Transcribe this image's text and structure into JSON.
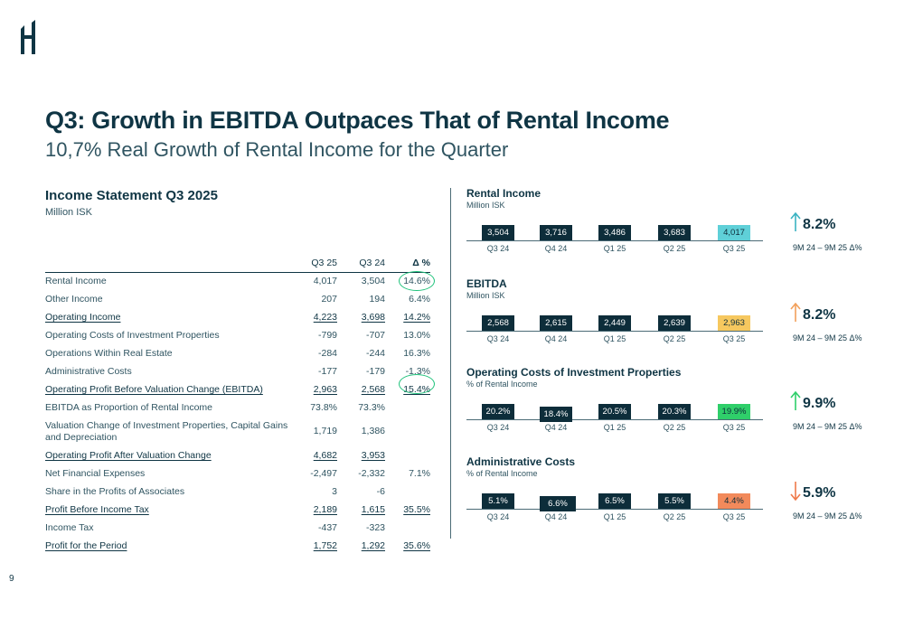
{
  "page": {
    "title": "Q3: Growth in EBITDA Outpaces That of Rental Income",
    "subtitle": "10,7% Real Growth of Rental Income for the Quarter",
    "page_number": "9"
  },
  "statement": {
    "title": "Income Statement Q3 2025",
    "unit": "Million ISK",
    "headers": [
      "Q3 25",
      "Q3 24",
      "Δ %"
    ],
    "rows": [
      {
        "label": "Rental Income",
        "q325": "4,017",
        "q324": "3,504",
        "delta": "14.6%",
        "style": "normal"
      },
      {
        "label": "Other Income",
        "q325": "207",
        "q324": "194",
        "delta": "6.4%",
        "style": "normal"
      },
      {
        "label": "Operating Income",
        "q325": "4,223",
        "q324": "3,698",
        "delta": "14.2%",
        "style": "bold"
      },
      {
        "label": "Operating Costs of Investment Properties",
        "q325": "-799",
        "q324": "-707",
        "delta": "13.0%",
        "style": "normal"
      },
      {
        "label": "Operations Within Real Estate",
        "q325": "-284",
        "q324": "-244",
        "delta": "16.3%",
        "style": "normal"
      },
      {
        "label": "Administrative Costs",
        "q325": "-177",
        "q324": "-179",
        "delta": "-1.3%",
        "style": "normal"
      },
      {
        "label": "Operating Profit Before Valuation Change (EBITDA)",
        "q325": "2,963",
        "q324": "2,568",
        "delta": "15.4%",
        "style": "bold"
      },
      {
        "label": "EBITDA as Proportion of Rental Income",
        "q325": "73.8%",
        "q324": "73.3%",
        "delta": "",
        "style": "normal"
      },
      {
        "label": "Valuation Change of Investment Properties, Capital Gains and Depreciation",
        "q325": "1,719",
        "q324": "1,386",
        "delta": "",
        "style": "tall"
      },
      {
        "label": "Operating Profit After Valuation Change",
        "q325": "4,682",
        "q324": "3,953",
        "delta": "",
        "style": "bold"
      },
      {
        "label": "Net Financial Expenses",
        "q325": "-2,497",
        "q324": "-2,332",
        "delta": "7.1%",
        "style": "normal"
      },
      {
        "label": "Share in the Profits of Associates",
        "q325": "3",
        "q324": "-6",
        "delta": "",
        "style": "normal"
      },
      {
        "label": "Profit Before Income Tax",
        "q325": "2,189",
        "q324": "1,615",
        "delta": "35.5%",
        "style": "bold"
      },
      {
        "label": "Income Tax",
        "q325": "-437",
        "q324": "-323",
        "delta": "",
        "style": "normal"
      },
      {
        "label": "Profit for the Period",
        "q325": "1,752",
        "q324": "1,292",
        "delta": "35.6%",
        "style": "bold"
      }
    ]
  },
  "colors": {
    "navy": "#0d2d3a",
    "highlight_teal": "#5fd0d8",
    "highlight_yellow": "#f6c85f",
    "highlight_green": "#2fcf6a",
    "highlight_orange": "#f28a5b",
    "arrow_teal": "#3bb3c2",
    "arrow_orange_up": "#f2a05b",
    "arrow_green": "#2fcf6a",
    "arrow_orange_down": "#ef7a4a",
    "circle_green": "#1ec27a"
  },
  "chart_data": [
    {
      "type": "table",
      "title": "Rental Income",
      "unit": "Million ISK",
      "categories": [
        "Q3 24",
        "Q4 24",
        "Q1 25",
        "Q2 25",
        "Q3 25"
      ],
      "values": [
        "3,504",
        "3,716",
        "3,486",
        "3,683",
        "4,017"
      ],
      "highlight_color": "#5fd0d8",
      "summary_value": "8.2%",
      "summary_label": "9M 24 – 9M 25 Δ%",
      "direction": "up",
      "arrow_color": "#3bb3c2"
    },
    {
      "type": "table",
      "title": "EBITDA",
      "unit": "Million ISK",
      "categories": [
        "Q3 24",
        "Q4 24",
        "Q1 25",
        "Q2 25",
        "Q3 25"
      ],
      "values": [
        "2,568",
        "2,615",
        "2,449",
        "2,639",
        "2,963"
      ],
      "highlight_color": "#f6c85f",
      "summary_value": "8.2%",
      "summary_label": "9M 24 – 9M 25 Δ%",
      "direction": "up",
      "arrow_color": "#f2a05b"
    },
    {
      "type": "table",
      "title": "Operating Costs of Investment Properties",
      "unit": "% of Rental Income",
      "categories": [
        "Q3 24",
        "Q4 24",
        "Q1 25",
        "Q2 25",
        "Q3 25"
      ],
      "values": [
        "20.2%",
        "18.4%",
        "20.5%",
        "20.3%",
        "19.9%"
      ],
      "highlight_color": "#2fcf6a",
      "summary_value": "9.9%",
      "summary_label": "9M 24 – 9M 25 Δ%",
      "direction": "up",
      "arrow_color": "#2fcf6a"
    },
    {
      "type": "table",
      "title": "Administrative Costs",
      "unit": "% of Rental Income",
      "categories": [
        "Q3 24",
        "Q4 24",
        "Q1 25",
        "Q2 25",
        "Q3 25"
      ],
      "values": [
        "5.1%",
        "6.6%",
        "6.5%",
        "5.5%",
        "4.4%"
      ],
      "highlight_color": "#f28a5b",
      "summary_value": "5.9%",
      "summary_label": "9M 24 – 9M 25 Δ%",
      "direction": "down",
      "arrow_color": "#ef7a4a"
    }
  ]
}
